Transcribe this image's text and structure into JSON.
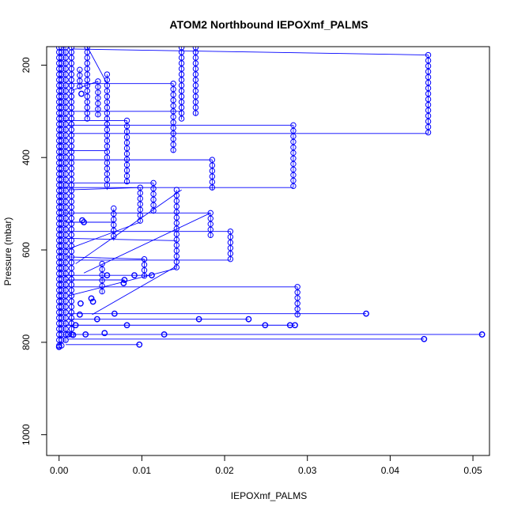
{
  "chart_data": {
    "type": "scatter",
    "title": "ATOM2 Northbound IEPOXmf_PALMS",
    "xlabel": "IEPOXmf_PALMS",
    "ylabel": "Pressure (mbar)",
    "xlim": [
      -0.0015,
      0.052
    ],
    "ylim": [
      1045,
      160
    ],
    "y_reversed": true,
    "x_ticks": [
      "0.00",
      "0.01",
      "0.02",
      "0.03",
      "0.04",
      "0.05"
    ],
    "x_tick_values": [
      0,
      0.01,
      0.02,
      0.03,
      0.04,
      0.05
    ],
    "y_ticks": [
      "200",
      "400",
      "600",
      "800",
      "1000"
    ],
    "y_tick_values": [
      200,
      400,
      600,
      800,
      1000
    ],
    "grid": false,
    "series": [
      {
        "color": "#0000ff",
        "marker": "open-circle",
        "connected": true,
        "columns": [
          {
            "x": 0.0446,
            "p_top": 178,
            "p_bottom": 348
          },
          {
            "x": 0.0283,
            "p_top": 330,
            "p_bottom": 465
          },
          {
            "x": 0.0288,
            "p_top": 680,
            "p_bottom": 745
          },
          {
            "x": 0.0207,
            "p_top": 560,
            "p_bottom": 622
          },
          {
            "x": 0.0185,
            "p_top": 405,
            "p_bottom": 470
          },
          {
            "x": 0.0183,
            "p_top": 520,
            "p_bottom": 573
          },
          {
            "x": 0.0165,
            "p_top": 160,
            "p_bottom": 310
          },
          {
            "x": 0.0148,
            "p_top": 160,
            "p_bottom": 318
          },
          {
            "x": 0.0142,
            "p_top": 470,
            "p_bottom": 640
          },
          {
            "x": 0.0138,
            "p_top": 240,
            "p_bottom": 390
          },
          {
            "x": 0.0114,
            "p_top": 455,
            "p_bottom": 522
          },
          {
            "x": 0.0098,
            "p_top": 465,
            "p_bottom": 540
          },
          {
            "x": 0.0103,
            "p_top": 620,
            "p_bottom": 660
          },
          {
            "x": 0.0082,
            "p_top": 320,
            "p_bottom": 458
          },
          {
            "x": 0.0066,
            "p_top": 510,
            "p_bottom": 580
          },
          {
            "x": 0.0058,
            "p_top": 220,
            "p_bottom": 470
          },
          {
            "x": 0.0047,
            "p_top": 235,
            "p_bottom": 312
          },
          {
            "x": 0.0052,
            "p_top": 630,
            "p_bottom": 695
          },
          {
            "x": 0.0034,
            "p_top": 160,
            "p_bottom": 318
          },
          {
            "x": 0.0025,
            "p_top": 210,
            "p_bottom": 250
          },
          {
            "x": 0.0015,
            "p_top": 160,
            "p_bottom": 790
          },
          {
            "x": 0.0008,
            "p_top": 160,
            "p_bottom": 800
          },
          {
            "x": 0.0003,
            "p_top": 160,
            "p_bottom": 810
          },
          {
            "x": 0.0,
            "p_top": 160,
            "p_bottom": 812
          }
        ],
        "points": [
          {
            "x": 0.0511,
            "y": 783
          },
          {
            "x": 0.0441,
            "y": 793
          },
          {
            "x": 0.0371,
            "y": 738
          },
          {
            "x": 0.0285,
            "y": 763
          },
          {
            "x": 0.0279,
            "y": 763
          },
          {
            "x": 0.0249,
            "y": 763
          },
          {
            "x": 0.0229,
            "y": 750
          },
          {
            "x": 0.0169,
            "y": 750
          },
          {
            "x": 0.0127,
            "y": 783
          },
          {
            "x": 0.0097,
            "y": 805
          },
          {
            "x": 0.0082,
            "y": 763
          },
          {
            "x": 0.0067,
            "y": 738
          },
          {
            "x": 0.0091,
            "y": 655
          },
          {
            "x": 0.0112,
            "y": 655
          },
          {
            "x": 0.0058,
            "y": 655
          },
          {
            "x": 0.0079,
            "y": 665
          },
          {
            "x": 0.0078,
            "y": 672
          },
          {
            "x": 0.0055,
            "y": 780
          },
          {
            "x": 0.0032,
            "y": 783
          },
          {
            "x": 0.0046,
            "y": 750
          },
          {
            "x": 0.0025,
            "y": 740
          },
          {
            "x": 0.002,
            "y": 763
          },
          {
            "x": 0.0039,
            "y": 705
          },
          {
            "x": 0.0041,
            "y": 712
          },
          {
            "x": 0.0026,
            "y": 716
          },
          {
            "x": 0.0028,
            "y": 536
          },
          {
            "x": 0.003,
            "y": 540
          },
          {
            "x": 0.0027,
            "y": 262
          },
          {
            "x": 0.0011,
            "y": 783
          },
          {
            "x": 0.0017,
            "y": 784
          },
          {
            "x": 0.0,
            "y": 810
          }
        ],
        "segments": [
          {
            "x1": 0.0015,
            "y1": 165,
            "x2": 0.0446,
            "y2": 178
          },
          {
            "x1": 0.0012,
            "y1": 348,
            "x2": 0.0446,
            "y2": 348
          },
          {
            "x1": 0.001,
            "y1": 330,
            "x2": 0.0283,
            "y2": 330
          },
          {
            "x1": 0.0005,
            "y1": 465,
            "x2": 0.0283,
            "y2": 465
          },
          {
            "x1": 0.0005,
            "y1": 680,
            "x2": 0.0288,
            "y2": 680
          },
          {
            "x1": 0.001,
            "y1": 738,
            "x2": 0.0371,
            "y2": 738
          },
          {
            "x1": 0.001,
            "y1": 783,
            "x2": 0.0511,
            "y2": 783
          },
          {
            "x1": 0.001,
            "y1": 793,
            "x2": 0.0441,
            "y2": 793
          },
          {
            "x1": 0.0008,
            "y1": 763,
            "x2": 0.0285,
            "y2": 763
          },
          {
            "x1": 0.001,
            "y1": 750,
            "x2": 0.0229,
            "y2": 750
          },
          {
            "x1": 0.0008,
            "y1": 805,
            "x2": 0.0097,
            "y2": 805
          },
          {
            "x1": 0.001,
            "y1": 405,
            "x2": 0.0185,
            "y2": 405
          },
          {
            "x1": 0.001,
            "y1": 560,
            "x2": 0.0207,
            "y2": 560
          },
          {
            "x1": 0.0012,
            "y1": 622,
            "x2": 0.0207,
            "y2": 622
          },
          {
            "x1": 0.001,
            "y1": 300,
            "x2": 0.0148,
            "y2": 300
          },
          {
            "x1": 0.001,
            "y1": 240,
            "x2": 0.0138,
            "y2": 240
          },
          {
            "x1": 0.0005,
            "y1": 320,
            "x2": 0.0082,
            "y2": 320
          },
          {
            "x1": 0.0008,
            "y1": 455,
            "x2": 0.0114,
            "y2": 455
          },
          {
            "x1": 0.0005,
            "y1": 520,
            "x2": 0.0183,
            "y2": 520
          },
          {
            "x1": 0.0008,
            "y1": 615,
            "x2": 0.0103,
            "y2": 620
          },
          {
            "x1": 0.0005,
            "y1": 655,
            "x2": 0.0112,
            "y2": 655
          },
          {
            "x1": 0.0008,
            "y1": 665,
            "x2": 0.0079,
            "y2": 665
          },
          {
            "x1": 0.003,
            "y1": 650,
            "x2": 0.0183,
            "y2": 520
          },
          {
            "x1": 0.004,
            "y1": 740,
            "x2": 0.0142,
            "y2": 635
          },
          {
            "x1": 0.001,
            "y1": 700,
            "x2": 0.0142,
            "y2": 640
          },
          {
            "x1": 0.002,
            "y1": 630,
            "x2": 0.0148,
            "y2": 470
          },
          {
            "x1": 0.0012,
            "y1": 470,
            "x2": 0.0098,
            "y2": 465
          },
          {
            "x1": 0.001,
            "y1": 575,
            "x2": 0.0142,
            "y2": 580
          },
          {
            "x1": 0.0008,
            "y1": 540,
            "x2": 0.0066,
            "y2": 540
          },
          {
            "x1": 0.0034,
            "y1": 160,
            "x2": 0.0058,
            "y2": 240
          },
          {
            "x1": 0.0015,
            "y1": 255,
            "x2": 0.0047,
            "y2": 235
          },
          {
            "x1": 0.0008,
            "y1": 600,
            "x2": 0.0098,
            "y2": 540
          },
          {
            "x1": 0.001,
            "y1": 385,
            "x2": 0.0058,
            "y2": 385
          }
        ]
      }
    ]
  }
}
